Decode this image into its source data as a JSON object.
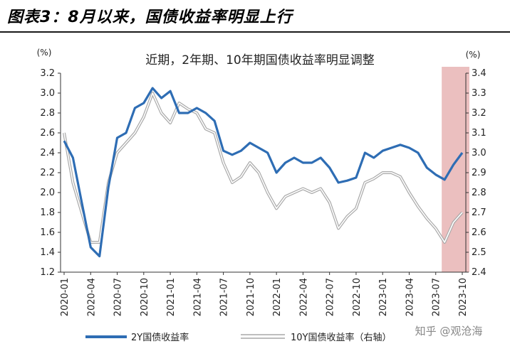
{
  "figure_title": "图表3：8月以来，国债收益率明显上行",
  "watermark": "知乎 @观沧海",
  "colors": {
    "series_2y": "#2e6db4",
    "series_10y": "#a9a9a9",
    "highlight": "#e8b4b4"
  },
  "chart_data": {
    "type": "line",
    "title": "近期，2年期、10年期国债收益率明显调整",
    "left_unit": "(%)",
    "right_unit": "(%)",
    "ylim_left": [
      1.2,
      3.2
    ],
    "ylim_right": [
      2.4,
      3.4
    ],
    "yticks_left": [
      "1.2",
      "1.4",
      "1.6",
      "1.8",
      "2.0",
      "2.2",
      "2.4",
      "2.6",
      "2.8",
      "3.0",
      "3.2"
    ],
    "yticks_right": [
      "2.4",
      "2.5",
      "2.6",
      "2.7",
      "2.8",
      "2.9",
      "3.0",
      "3.1",
      "3.2",
      "3.3",
      "3.4"
    ],
    "x_ticks": [
      "2020-01",
      "2020-04",
      "2020-07",
      "2020-10",
      "2021-01",
      "2021-04",
      "2021-07",
      "2021-10",
      "2022-01",
      "2022-04",
      "2022-07",
      "2022-10",
      "2023-01",
      "2023-04",
      "2023-07",
      "2023-10"
    ],
    "highlight_range": [
      "2023-08",
      "2023-10"
    ],
    "grid": false,
    "legend_position": "bottom",
    "series": [
      {
        "name": "2Y国债收益率",
        "axis": "left",
        "x": [
          "2020-01",
          "2020-02",
          "2020-03",
          "2020-04",
          "2020-05",
          "2020-06",
          "2020-07",
          "2020-08",
          "2020-09",
          "2020-10",
          "2020-11",
          "2020-12",
          "2021-01",
          "2021-02",
          "2021-03",
          "2021-04",
          "2021-05",
          "2021-06",
          "2021-07",
          "2021-08",
          "2021-09",
          "2021-10",
          "2021-11",
          "2021-12",
          "2022-01",
          "2022-02",
          "2022-03",
          "2022-04",
          "2022-05",
          "2022-06",
          "2022-07",
          "2022-08",
          "2022-09",
          "2022-10",
          "2022-11",
          "2022-12",
          "2023-01",
          "2023-02",
          "2023-03",
          "2023-04",
          "2023-05",
          "2023-06",
          "2023-07",
          "2023-08",
          "2023-09",
          "2023-10"
        ],
        "values": [
          2.52,
          2.35,
          1.9,
          1.45,
          1.36,
          2.05,
          2.55,
          2.6,
          2.85,
          2.9,
          3.05,
          2.95,
          3.02,
          2.8,
          2.8,
          2.85,
          2.8,
          2.72,
          2.42,
          2.38,
          2.42,
          2.5,
          2.45,
          2.4,
          2.2,
          2.3,
          2.35,
          2.3,
          2.3,
          2.35,
          2.25,
          2.1,
          2.12,
          2.15,
          2.4,
          2.35,
          2.42,
          2.45,
          2.48,
          2.45,
          2.4,
          2.25,
          2.18,
          2.13,
          2.28,
          2.4
        ]
      },
      {
        "name": "10Y国债收益率（右轴）",
        "axis": "right",
        "x": [
          "2020-01",
          "2020-02",
          "2020-03",
          "2020-04",
          "2020-05",
          "2020-06",
          "2020-07",
          "2020-08",
          "2020-09",
          "2020-10",
          "2020-11",
          "2020-12",
          "2021-01",
          "2021-02",
          "2021-03",
          "2021-04",
          "2021-05",
          "2021-06",
          "2021-07",
          "2021-08",
          "2021-09",
          "2021-10",
          "2021-11",
          "2021-12",
          "2022-01",
          "2022-02",
          "2022-03",
          "2022-04",
          "2022-05",
          "2022-06",
          "2022-07",
          "2022-08",
          "2022-09",
          "2022-10",
          "2022-11",
          "2022-12",
          "2023-01",
          "2023-02",
          "2023-03",
          "2023-04",
          "2023-05",
          "2023-06",
          "2023-07",
          "2023-08",
          "2023-09",
          "2023-10"
        ],
        "values": [
          3.1,
          2.85,
          2.7,
          2.55,
          2.55,
          2.85,
          3.0,
          3.05,
          3.1,
          3.18,
          3.3,
          3.2,
          3.15,
          3.25,
          3.22,
          3.2,
          3.12,
          3.1,
          2.95,
          2.85,
          2.88,
          2.95,
          2.9,
          2.8,
          2.72,
          2.78,
          2.8,
          2.82,
          2.8,
          2.82,
          2.75,
          2.62,
          2.68,
          2.72,
          2.85,
          2.87,
          2.9,
          2.9,
          2.88,
          2.8,
          2.73,
          2.67,
          2.62,
          2.55,
          2.65,
          2.7
        ]
      }
    ]
  }
}
